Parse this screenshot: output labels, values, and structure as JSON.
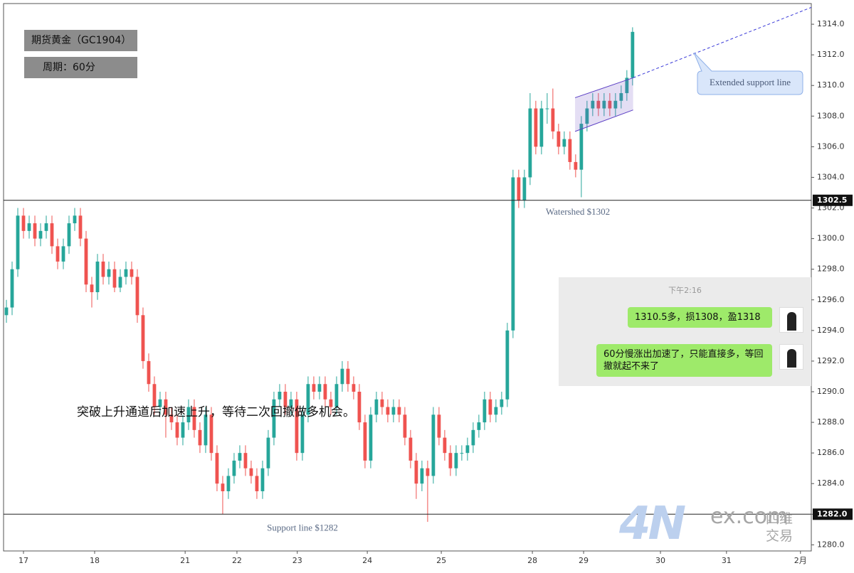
{
  "chart_data": {
    "type": "candlestick",
    "instrument": "期货黄金（GC1904）",
    "period": "周期：60分",
    "annotation": "突破上升通道后加速上升，等待二次回撤做多机会。",
    "up_color": "#26a69a",
    "down_color": "#ef5350",
    "open": [
      1295,
      1295.5,
      1298,
      1301.5,
      1300.5,
      1301,
      1300,
      1300.5,
      1301,
      1299.5,
      1298.5,
      1299.5,
      1301,
      1301.5,
      1300,
      1297,
      1296.5,
      1298.5,
      1297.5,
      1298,
      1296.8,
      1297.5,
      1298,
      1297.5,
      1295,
      1292,
      1290.5,
      1289,
      1289.5,
      1288.5,
      1288,
      1287,
      1288,
      1289,
      1287.5,
      1286.5,
      1288.5,
      1286,
      1284,
      1283.5,
      1284.5,
      1285.5,
      1286,
      1285,
      1284.5,
      1283.5,
      1285,
      1287,
      1289.5,
      1290,
      1289,
      1289.5,
      1286,
      1288.5,
      1290.5,
      1290,
      1290.5,
      1289.5,
      1289,
      1290.5,
      1291.5,
      1290.5,
      1290,
      1288,
      1285.5,
      1288.5,
      1289.5,
      1289,
      1288.5,
      1289,
      1288.5,
      1287,
      1285.5,
      1284,
      1285,
      1284.5,
      1288.5,
      1287,
      1286,
      1285,
      1286,
      1286,
      1286.5,
      1287.5,
      1288,
      1289.5,
      1288.5,
      1289,
      1289.5,
      1294,
      1304,
      1302.5,
      1304,
      1308.5,
      1306,
      1308.5,
      1308.5,
      1307,
      1306,
      1306.5,
      1305,
      1304.5,
      1307.5,
      1308.5,
      1309,
      1308.5,
      1309,
      1308.5,
      1309,
      1309.5,
      1310.5
    ],
    "high": [
      1296,
      1298.5,
      1302,
      1302,
      1301.5,
      1301.5,
      1301,
      1301.5,
      1301.5,
      1300,
      1300,
      1301.5,
      1302,
      1302,
      1300.5,
      1297.5,
      1299,
      1299,
      1298.5,
      1298.5,
      1298,
      1298.5,
      1298.5,
      1298,
      1295.5,
      1292.5,
      1291,
      1290,
      1290,
      1289,
      1288.5,
      1288.5,
      1289.5,
      1289.5,
      1288,
      1289,
      1289,
      1286.5,
      1284.5,
      1285,
      1286,
      1286.5,
      1286.5,
      1285.5,
      1285,
      1285.5,
      1287.5,
      1290,
      1290.5,
      1290.5,
      1290,
      1290,
      1289,
      1291,
      1291,
      1291,
      1291,
      1290,
      1291,
      1292,
      1292,
      1291,
      1290.5,
      1288.5,
      1289,
      1290,
      1290,
      1289.5,
      1289.5,
      1289.5,
      1289,
      1287.5,
      1286,
      1285.5,
      1285.5,
      1289,
      1289,
      1287.5,
      1286.5,
      1286.5,
      1286.5,
      1287,
      1288,
      1288.5,
      1290,
      1290,
      1289.5,
      1290,
      1294.5,
      1304.5,
      1304.5,
      1304.5,
      1309.5,
      1309,
      1309,
      1309.5,
      1309.8,
      1307.5,
      1307,
      1307,
      1305.5,
      1308,
      1309,
      1309.5,
      1309.5,
      1309.5,
      1309.5,
      1309.5,
      1310,
      1311,
      1313.8
    ],
    "low": [
      1294.5,
      1295,
      1297.5,
      1300,
      1300,
      1299.5,
      1299.5,
      1300,
      1299,
      1298,
      1298,
      1299,
      1300.5,
      1299.5,
      1296.5,
      1295.5,
      1296,
      1297,
      1297,
      1296.5,
      1296.5,
      1297,
      1297,
      1294.5,
      1291.5,
      1290,
      1288.5,
      1288.5,
      1287,
      1287.5,
      1286.5,
      1286.5,
      1287.5,
      1287,
      1286,
      1286,
      1285.5,
      1283.5,
      1282,
      1283,
      1284,
      1285,
      1284.5,
      1284,
      1283,
      1283,
      1284.5,
      1286.5,
      1289,
      1288.5,
      1288.5,
      1285.5,
      1285.5,
      1288,
      1289.5,
      1289.5,
      1289,
      1288.5,
      1288.5,
      1290,
      1290,
      1289.5,
      1287.5,
      1285,
      1285,
      1288,
      1288.5,
      1288,
      1288,
      1288,
      1286.5,
      1285,
      1283,
      1283.5,
      1281.5,
      1284,
      1286.5,
      1285.5,
      1284.5,
      1284.5,
      1285.5,
      1285.5,
      1286,
      1287,
      1287.5,
      1288,
      1288,
      1288.5,
      1289,
      1293.5,
      1302,
      1302,
      1303.5,
      1305.5,
      1305.5,
      1307.5,
      1306.5,
      1305.5,
      1305.5,
      1304.5,
      1304,
      1302.7,
      1307,
      1308,
      1308,
      1308,
      1308,
      1308,
      1308.5,
      1309,
      1310
    ],
    "close": [
      1295.5,
      1298,
      1301.5,
      1300.5,
      1301,
      1300,
      1300.5,
      1301,
      1299.5,
      1298.5,
      1299.5,
      1301,
      1301.5,
      1300,
      1297,
      1296.5,
      1298.5,
      1297.5,
      1298,
      1296.8,
      1297.5,
      1298,
      1297.5,
      1295,
      1292,
      1290.5,
      1289,
      1289.5,
      1288.5,
      1288,
      1287,
      1288,
      1289,
      1287.5,
      1286.5,
      1288.5,
      1286,
      1284,
      1283.5,
      1284.5,
      1285.5,
      1286,
      1285,
      1284.5,
      1283.5,
      1285,
      1287,
      1289.5,
      1290,
      1289,
      1289.5,
      1286,
      1288.5,
      1290.5,
      1290,
      1290.5,
      1289.5,
      1289,
      1290.5,
      1291.5,
      1290.5,
      1290,
      1288,
      1285.5,
      1288.5,
      1289.5,
      1289,
      1288.5,
      1289,
      1288.5,
      1287,
      1285.5,
      1284,
      1285,
      1284.5,
      1288.5,
      1287,
      1286,
      1285,
      1286,
      1286,
      1286.5,
      1287.5,
      1288,
      1289.5,
      1288.5,
      1289,
      1289.5,
      1294,
      1304,
      1302.5,
      1304,
      1308.5,
      1306,
      1308.5,
      1308.5,
      1307,
      1306,
      1306.5,
      1305,
      1304.5,
      1307.5,
      1308.5,
      1309,
      1308.5,
      1309,
      1308.5,
      1309,
      1309.5,
      1310.5,
      1313.5
    ],
    "xlim": [
      0,
      141.9
    ],
    "xticks": [
      {
        "value": 3.5,
        "label": "17"
      },
      {
        "value": 16,
        "label": "18"
      },
      {
        "value": 31.9,
        "label": "21"
      },
      {
        "value": 41,
        "label": "22"
      },
      {
        "value": 51.6,
        "label": "23"
      },
      {
        "value": 63.9,
        "label": "24"
      },
      {
        "value": 76.9,
        "label": "25"
      },
      {
        "value": 92.9,
        "label": "28"
      },
      {
        "value": 101.9,
        "label": "29"
      },
      {
        "value": 115.4,
        "label": "30"
      },
      {
        "value": 127,
        "label": "31"
      },
      {
        "value": 140,
        "label": "2月"
      }
    ],
    "ylim": [
      1279.6,
      1315.35
    ],
    "yticks": [
      {
        "value": 1280,
        "label": "1280.0"
      },
      {
        "value": 1282,
        "label": "1282.0"
      },
      {
        "value": 1284,
        "label": "1284.0"
      },
      {
        "value": 1286,
        "label": "1286.0"
      },
      {
        "value": 1288,
        "label": "1288.0"
      },
      {
        "value": 1290,
        "label": "1290.0"
      },
      {
        "value": 1292,
        "label": "1292.0"
      },
      {
        "value": 1294,
        "label": "1294.0"
      },
      {
        "value": 1296,
        "label": "1296.0"
      },
      {
        "value": 1298,
        "label": "1298.0"
      },
      {
        "value": 1300,
        "label": "1300.0"
      },
      {
        "value": 1302,
        "label": "1302.0"
      },
      {
        "value": 1304,
        "label": "1304.0"
      },
      {
        "value": 1306,
        "label": "1306.0"
      },
      {
        "value": 1308,
        "label": "1308.0"
      },
      {
        "value": 1310,
        "label": "1310.0"
      },
      {
        "value": 1312,
        "label": "1312.0"
      },
      {
        "value": 1314,
        "label": "1314.0"
      }
    ],
    "hlines": [
      {
        "value": 1302.5,
        "label": "1302.5",
        "text": "Watershed $1302"
      },
      {
        "value": 1282,
        "label": "1282.0",
        "text": "Support line $1282"
      }
    ],
    "channel": {
      "x": [
        100.4,
        110.6
      ],
      "upper": [
        1309.2,
        1310.5
      ],
      "lower": [
        1307.0,
        1308.4
      ]
    },
    "extension": {
      "x": [
        110.6,
        141.9
      ],
      "y": [
        1310.5,
        1315.1
      ],
      "label": "Extended support line"
    }
  },
  "chat": {
    "time": "下午2:16",
    "messages": [
      "1310.5多，损1308，盈1318",
      "60分慢涨出加速了，只能直接多，等回撤就起不来了"
    ]
  },
  "watermark": {
    "logo": "4N",
    "site": "ex.com",
    "name": "四维交易"
  }
}
